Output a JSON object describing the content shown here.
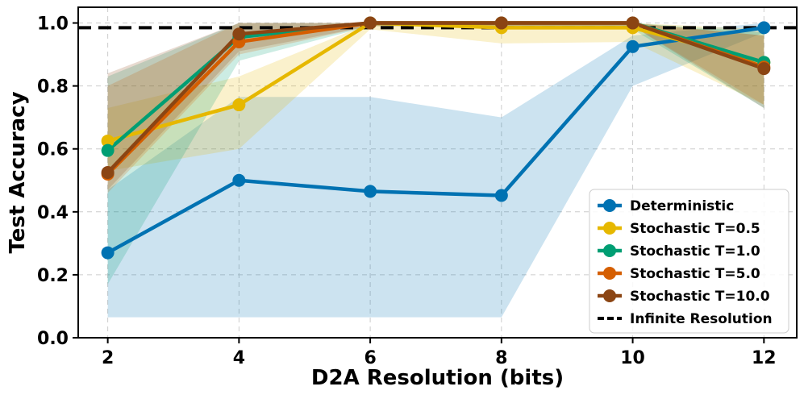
{
  "chart_data": {
    "type": "line",
    "title": "",
    "xlabel": "D2A Resolution (bits)",
    "ylabel": "Test Accuracy",
    "x": [
      2,
      4,
      6,
      8,
      10,
      12
    ],
    "xlim": [
      1.55,
      12.5
    ],
    "ylim": [
      0.0,
      1.05
    ],
    "xticks": [
      "2",
      "4",
      "6",
      "8",
      "10",
      "12"
    ],
    "yticks": [
      "0.0",
      "0.2",
      "0.4",
      "0.6",
      "0.8",
      "1.0"
    ],
    "grid": true,
    "legend_position": "lower-right",
    "series": [
      {
        "name": "Deterministic",
        "color": "#0072B2",
        "values": [
          0.27,
          0.5,
          0.465,
          0.452,
          0.925,
          0.985
        ],
        "lower": [
          0.065,
          0.065,
          0.065,
          0.065,
          0.8,
          0.97
        ],
        "upper": [
          0.47,
          0.765,
          0.765,
          0.7,
          0.96,
          1.0
        ]
      },
      {
        "name": "Stochastic T=0.5",
        "color": "#E6B800",
        "values": [
          0.625,
          0.74,
          1.0,
          0.985,
          0.985,
          0.875
        ],
        "lower": [
          0.53,
          0.6,
          0.98,
          0.935,
          0.94,
          0.74
        ],
        "upper": [
          0.73,
          0.83,
          1.0,
          1.0,
          1.0,
          0.98
        ]
      },
      {
        "name": "Stochastic T=1.0",
        "color": "#009E73",
        "values": [
          0.595,
          0.955,
          1.0,
          1.0,
          1.0,
          0.875
        ],
        "lower": [
          0.17,
          0.88,
          0.99,
          0.99,
          0.98,
          0.73
        ],
        "upper": [
          0.83,
          1.0,
          1.0,
          1.0,
          1.0,
          0.97
        ]
      },
      {
        "name": "Stochastic T=5.0",
        "color": "#D55E00",
        "values": [
          0.52,
          0.94,
          1.0,
          1.0,
          1.0,
          0.86
        ],
        "lower": [
          0.46,
          0.9,
          0.99,
          0.99,
          0.99,
          0.74
        ],
        "upper": [
          0.8,
          1.0,
          1.0,
          1.0,
          1.0,
          0.96
        ]
      },
      {
        "name": "Stochastic T=10.0",
        "color": "#8B4513",
        "values": [
          0.525,
          0.965,
          1.0,
          1.0,
          1.0,
          0.855
        ],
        "lower": [
          0.47,
          0.91,
          0.99,
          0.99,
          0.99,
          0.73
        ],
        "upper": [
          0.84,
          1.0,
          1.0,
          1.0,
          1.0,
          0.96
        ]
      }
    ],
    "reference_lines": [
      {
        "name": "Infinite Resolution",
        "y": 0.985,
        "color": "#000000",
        "style": "dashed"
      }
    ]
  }
}
